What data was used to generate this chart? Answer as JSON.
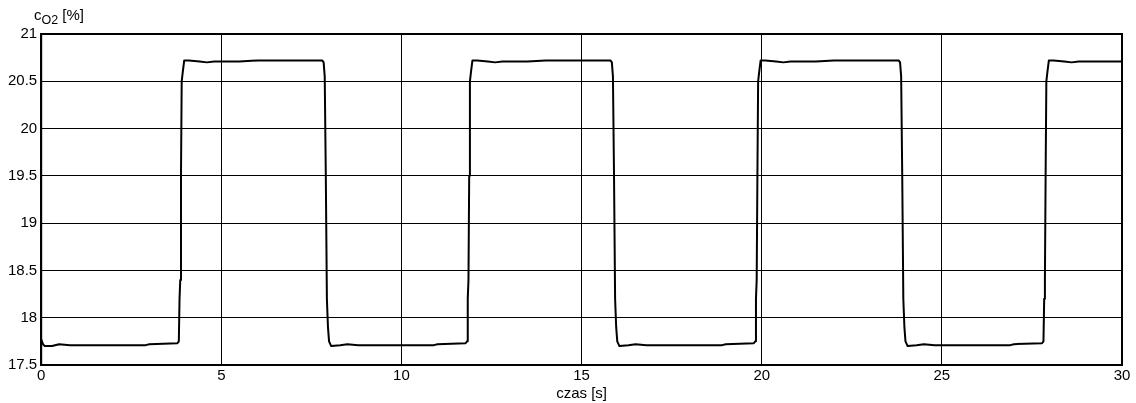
{
  "chart_data": {
    "type": "line",
    "ylabel": "c$_{O2}$ [%]",
    "xlabel": "czas [s]",
    "color": "#000000",
    "x": [
      0,
      0.05,
      0.1,
      0.3,
      0.5,
      0.8,
      2.9,
      3.0,
      3.78,
      3.82,
      3.84,
      3.86,
      3.88,
      3.9,
      3.93,
      3.97,
      4.1,
      4.4,
      4.6,
      4.8,
      5.5,
      6.0,
      7.8,
      7.84,
      7.87,
      7.9,
      7.93,
      7.96,
      7.99,
      8.05,
      8.3,
      8.5,
      8.8,
      10.9,
      11.0,
      11.78,
      11.82,
      11.84,
      11.86,
      11.88,
      11.9,
      11.93,
      11.97,
      12.1,
      12.4,
      12.6,
      12.8,
      13.5,
      14.0,
      15.8,
      15.84,
      15.87,
      15.9,
      15.93,
      15.96,
      15.99,
      16.05,
      16.3,
      16.5,
      16.8,
      18.9,
      19.0,
      19.78,
      19.82,
      19.84,
      19.86,
      19.88,
      19.9,
      19.93,
      19.97,
      20.1,
      20.4,
      20.6,
      20.8,
      21.5,
      22.0,
      23.8,
      23.84,
      23.87,
      23.9,
      23.93,
      23.96,
      23.99,
      24.05,
      24.3,
      24.5,
      24.8,
      26.9,
      27.0,
      27.78,
      27.82,
      27.84,
      27.86,
      27.88,
      27.9,
      27.93,
      27.97,
      28.1,
      28.4,
      28.6,
      28.8,
      29.5,
      30
    ],
    "values": [
      17.77,
      17.72,
      17.7,
      17.7,
      17.72,
      17.71,
      17.71,
      17.72,
      17.73,
      17.75,
      18.2,
      18.4,
      19.5,
      20.5,
      20.6,
      20.72,
      20.72,
      20.71,
      20.7,
      20.71,
      20.71,
      20.72,
      20.72,
      20.7,
      20.55,
      19.5,
      18.2,
      17.9,
      17.75,
      17.7,
      17.71,
      17.72,
      17.71,
      17.71,
      17.72,
      17.73,
      17.75,
      18.2,
      18.4,
      19.5,
      20.5,
      20.6,
      20.72,
      20.72,
      20.71,
      20.7,
      20.71,
      20.71,
      20.72,
      20.72,
      20.7,
      20.55,
      19.5,
      18.2,
      17.9,
      17.75,
      17.7,
      17.71,
      17.72,
      17.71,
      17.71,
      17.72,
      17.73,
      17.75,
      18.2,
      18.4,
      19.5,
      20.5,
      20.6,
      20.72,
      20.72,
      20.71,
      20.7,
      20.71,
      20.71,
      20.72,
      20.72,
      20.7,
      20.55,
      19.5,
      18.2,
      17.9,
      17.75,
      17.7,
      17.71,
      17.72,
      17.71,
      17.71,
      17.72,
      17.73,
      17.75,
      18.2,
      18.4,
      19.5,
      20.5,
      20.6,
      20.72,
      20.72,
      20.71,
      20.7,
      20.71,
      20.71,
      20.71
    ],
    "xlim": [
      0,
      30
    ],
    "ylim": [
      17.5,
      21
    ],
    "xticks": [
      0,
      5,
      10,
      15,
      20,
      25,
      30
    ],
    "yticks": [
      17.5,
      18,
      18.5,
      19,
      19.5,
      20,
      20.5,
      21
    ],
    "grid": true
  }
}
